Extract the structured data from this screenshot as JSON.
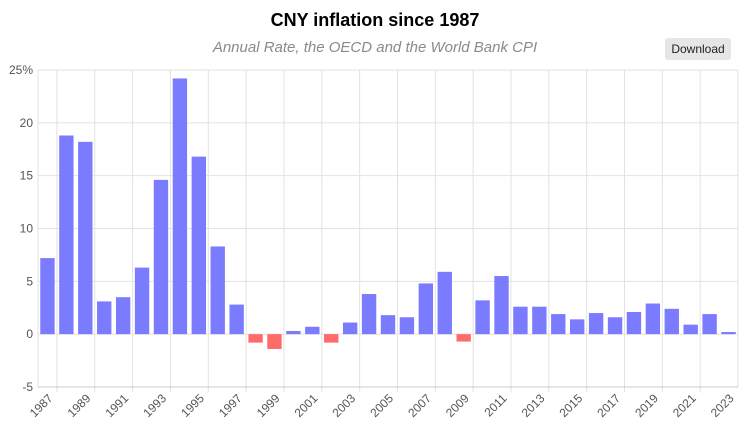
{
  "header": {
    "title": "CNY inflation since 1987",
    "subtitle": "Annual Rate, the OECD and the World Bank CPI",
    "download_label": "Download"
  },
  "chart_data": {
    "type": "bar",
    "title": "CNY inflation since 1987",
    "subtitle": "Annual Rate, the OECD and the World Bank CPI",
    "xlabel": "",
    "ylabel": "",
    "ylim": [
      -5,
      25
    ],
    "yticks": [
      "-5",
      "0",
      "5",
      "10",
      "15",
      "20",
      "25%"
    ],
    "xtick_labels": [
      "1987",
      "1989",
      "1991",
      "1993",
      "1995",
      "1997",
      "1999",
      "2001",
      "2003",
      "2005",
      "2007",
      "2009",
      "2011",
      "2013",
      "2015",
      "2017",
      "2019",
      "2021",
      "2023"
    ],
    "grid": true,
    "legend": "none",
    "colors": {
      "positive": "#7b7bff",
      "negative": "#ff6b6b"
    },
    "categories": [
      "1987",
      "1988",
      "1989",
      "1990",
      "1991",
      "1992",
      "1993",
      "1994",
      "1995",
      "1996",
      "1997",
      "1998",
      "1999",
      "2000",
      "2001",
      "2002",
      "2003",
      "2004",
      "2005",
      "2006",
      "2007",
      "2008",
      "2009",
      "2010",
      "2011",
      "2012",
      "2013",
      "2014",
      "2015",
      "2016",
      "2017",
      "2018",
      "2019",
      "2020",
      "2021",
      "2022",
      "2023"
    ],
    "values": [
      7.2,
      18.8,
      18.2,
      3.1,
      3.5,
      6.3,
      14.6,
      24.2,
      16.8,
      8.3,
      2.8,
      -0.8,
      -1.4,
      0.3,
      0.7,
      -0.8,
      1.1,
      3.8,
      1.8,
      1.6,
      4.8,
      5.9,
      -0.7,
      3.2,
      5.5,
      2.6,
      2.6,
      1.9,
      1.4,
      2.0,
      1.6,
      2.1,
      2.9,
      2.4,
      0.9,
      1.9,
      0.2
    ]
  }
}
